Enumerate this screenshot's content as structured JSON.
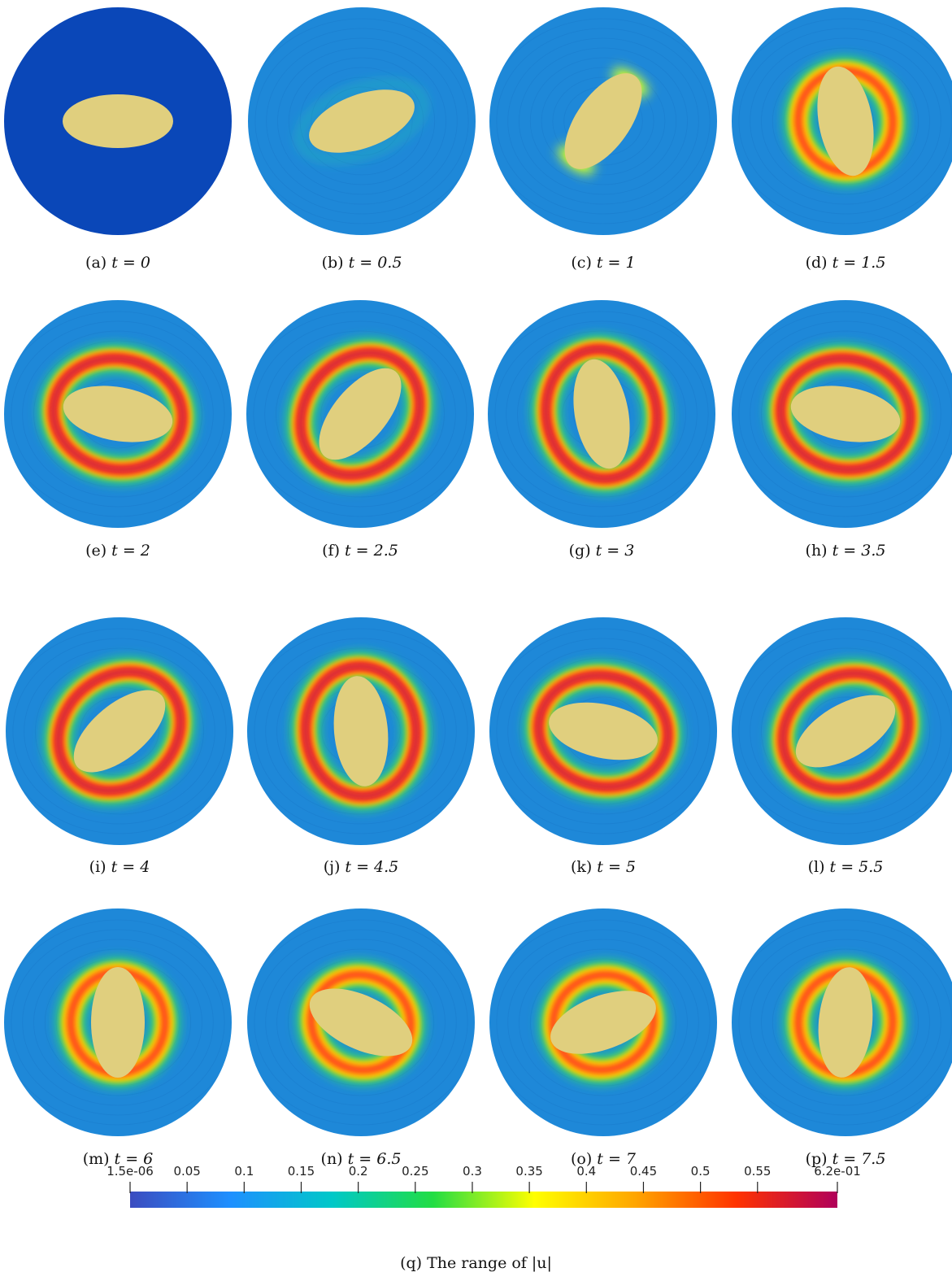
{
  "panels": [
    {
      "label": "(a)",
      "caption": "t = 0",
      "angle_deg": 0,
      "has_flow": false
    },
    {
      "label": "(b)",
      "caption": "t = 0.5",
      "angle_deg": -20,
      "has_flow": true,
      "ring_strength": 0.05
    },
    {
      "label": "(c)",
      "caption": "t = 1",
      "angle_deg": -55,
      "has_flow": true,
      "ring_strength": 0.35
    },
    {
      "label": "(d)",
      "caption": "t = 1.5",
      "angle_deg": -100,
      "has_flow": true,
      "ring_strength": 0.45
    },
    {
      "label": "(e)",
      "caption": "t = 2",
      "angle_deg": 10,
      "has_flow": true,
      "ring_strength": 0.6
    },
    {
      "label": "(f)",
      "caption": "t = 2.5",
      "angle_deg": -50,
      "has_flow": true,
      "ring_strength": 0.6
    },
    {
      "label": "(g)",
      "caption": "t = 3",
      "angle_deg": -100,
      "has_flow": true,
      "ring_strength": 0.6
    },
    {
      "label": "(h)",
      "caption": "t = 3.5",
      "angle_deg": 10,
      "has_flow": true,
      "ring_strength": 0.55
    },
    {
      "label": "(i)",
      "caption": "t = 4",
      "angle_deg": -40,
      "has_flow": true,
      "ring_strength": 0.6
    },
    {
      "label": "(j)",
      "caption": "t = 4.5",
      "angle_deg": -95,
      "has_flow": true,
      "ring_strength": 0.55
    },
    {
      "label": "(k)",
      "caption": "t = 5",
      "angle_deg": 12,
      "has_flow": true,
      "ring_strength": 0.55
    },
    {
      "label": "(l)",
      "caption": "t = 5.5",
      "angle_deg": -30,
      "has_flow": true,
      "ring_strength": 0.55
    },
    {
      "label": "(m)",
      "caption": "t = 6",
      "angle_deg": -90,
      "has_flow": true,
      "ring_strength": 0.5
    },
    {
      "label": "(n)",
      "caption": "t = 6.5",
      "angle_deg": 25,
      "has_flow": true,
      "ring_strength": 0.5
    },
    {
      "label": "(o)",
      "caption": "t = 7",
      "angle_deg": -20,
      "has_flow": true,
      "ring_strength": 0.5
    },
    {
      "label": "(p)",
      "caption": "t = 7.5",
      "angle_deg": -85,
      "has_flow": true,
      "ring_strength": 0.5
    }
  ],
  "colorbar": {
    "tick_labels": [
      "1.5e-06",
      "0.05",
      "0.1",
      "0.15",
      "0.2",
      "0.25",
      "0.3",
      "0.35",
      "0.4",
      "0.45",
      "0.5",
      "0.55",
      "6.2e-01"
    ],
    "tick_values": [
      1.5e-06,
      0.05,
      0.1,
      0.15,
      0.2,
      0.25,
      0.3,
      0.35,
      0.4,
      0.45,
      0.5,
      0.55,
      0.62
    ],
    "range": [
      1.5e-06,
      0.62
    ],
    "stops": [
      "#3b4cc0",
      "#1e90ff",
      "#00c8c8",
      "#22dd44",
      "#ffff00",
      "#ffa500",
      "#ff3300",
      "#b0005a"
    ]
  },
  "colorbar_caption": {
    "label": "(q)",
    "text": "The range of |u|"
  },
  "colors": {
    "ellipse": "#e0cf7e",
    "background_field": "#1e88d8",
    "initial_field": "#0a47b8"
  }
}
